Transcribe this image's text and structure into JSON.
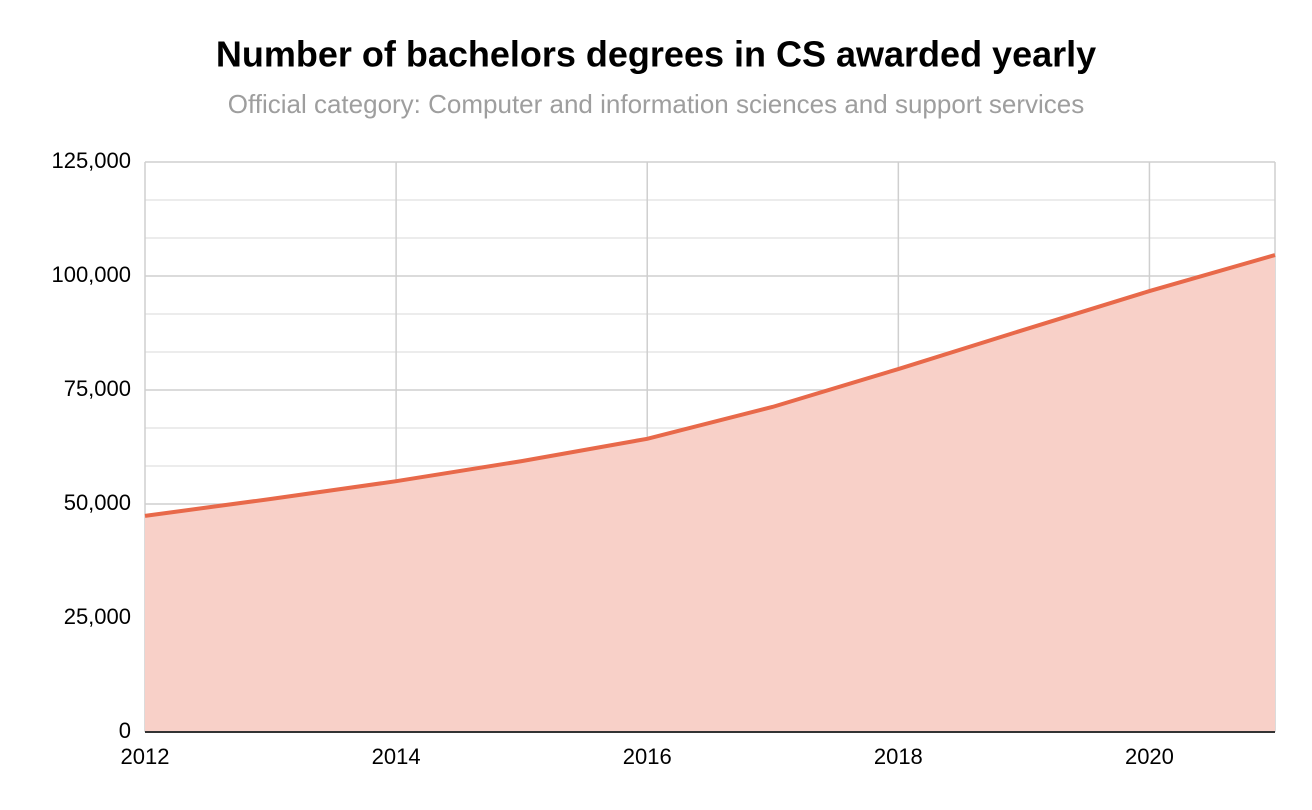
{
  "chart_data": {
    "type": "area",
    "title": "Number of bachelors degrees in CS awarded yearly",
    "subtitle": "Official category: Computer and information sciences and support services",
    "x": [
      2012,
      2013,
      2014,
      2015,
      2016,
      2017,
      2018,
      2019,
      2020,
      2021
    ],
    "values": [
      47400,
      51100,
      55000,
      59400,
      64300,
      71300,
      79600,
      88200,
      96700,
      104600
    ],
    "color": "#e8694a",
    "fill_color": "#f8d0c8",
    "xlim": [
      2012,
      2021
    ],
    "xticks": [
      2012,
      2014,
      2016,
      2018,
      2020
    ],
    "ylim": [
      0,
      125000
    ],
    "yticks": [
      0,
      {
        "value": 25000,
        "label": "25,000"
      },
      {
        "value": 50000,
        "label": "50,000"
      },
      {
        "value": 75000,
        "label": "75,000"
      },
      {
        "value": 100000,
        "label": "100,000"
      },
      {
        "value": 125000,
        "label": "125,000"
      }
    ],
    "grid": true
  }
}
